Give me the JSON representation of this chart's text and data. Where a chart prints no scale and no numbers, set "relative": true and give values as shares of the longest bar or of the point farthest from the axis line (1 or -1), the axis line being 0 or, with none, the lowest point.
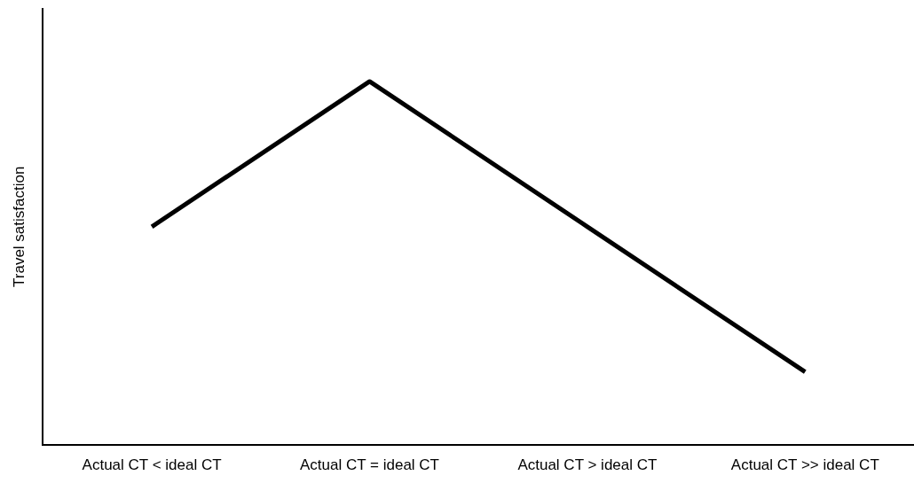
{
  "chart_data": {
    "type": "line",
    "ylabel": "Travel satisfaction",
    "categories": [
      "Actual CT < ideal CT",
      "Actual CT = ideal CT",
      "Actual CT > ideal CT",
      "Actual CT >> ideal CT"
    ],
    "series": [
      {
        "color": "#000000",
        "values": [
          0.6,
          1,
          0.6,
          0.2
        ]
      }
    ],
    "relative": true,
    "grid": false,
    "legend": false,
    "marker": "none",
    "line_style": "solid"
  }
}
